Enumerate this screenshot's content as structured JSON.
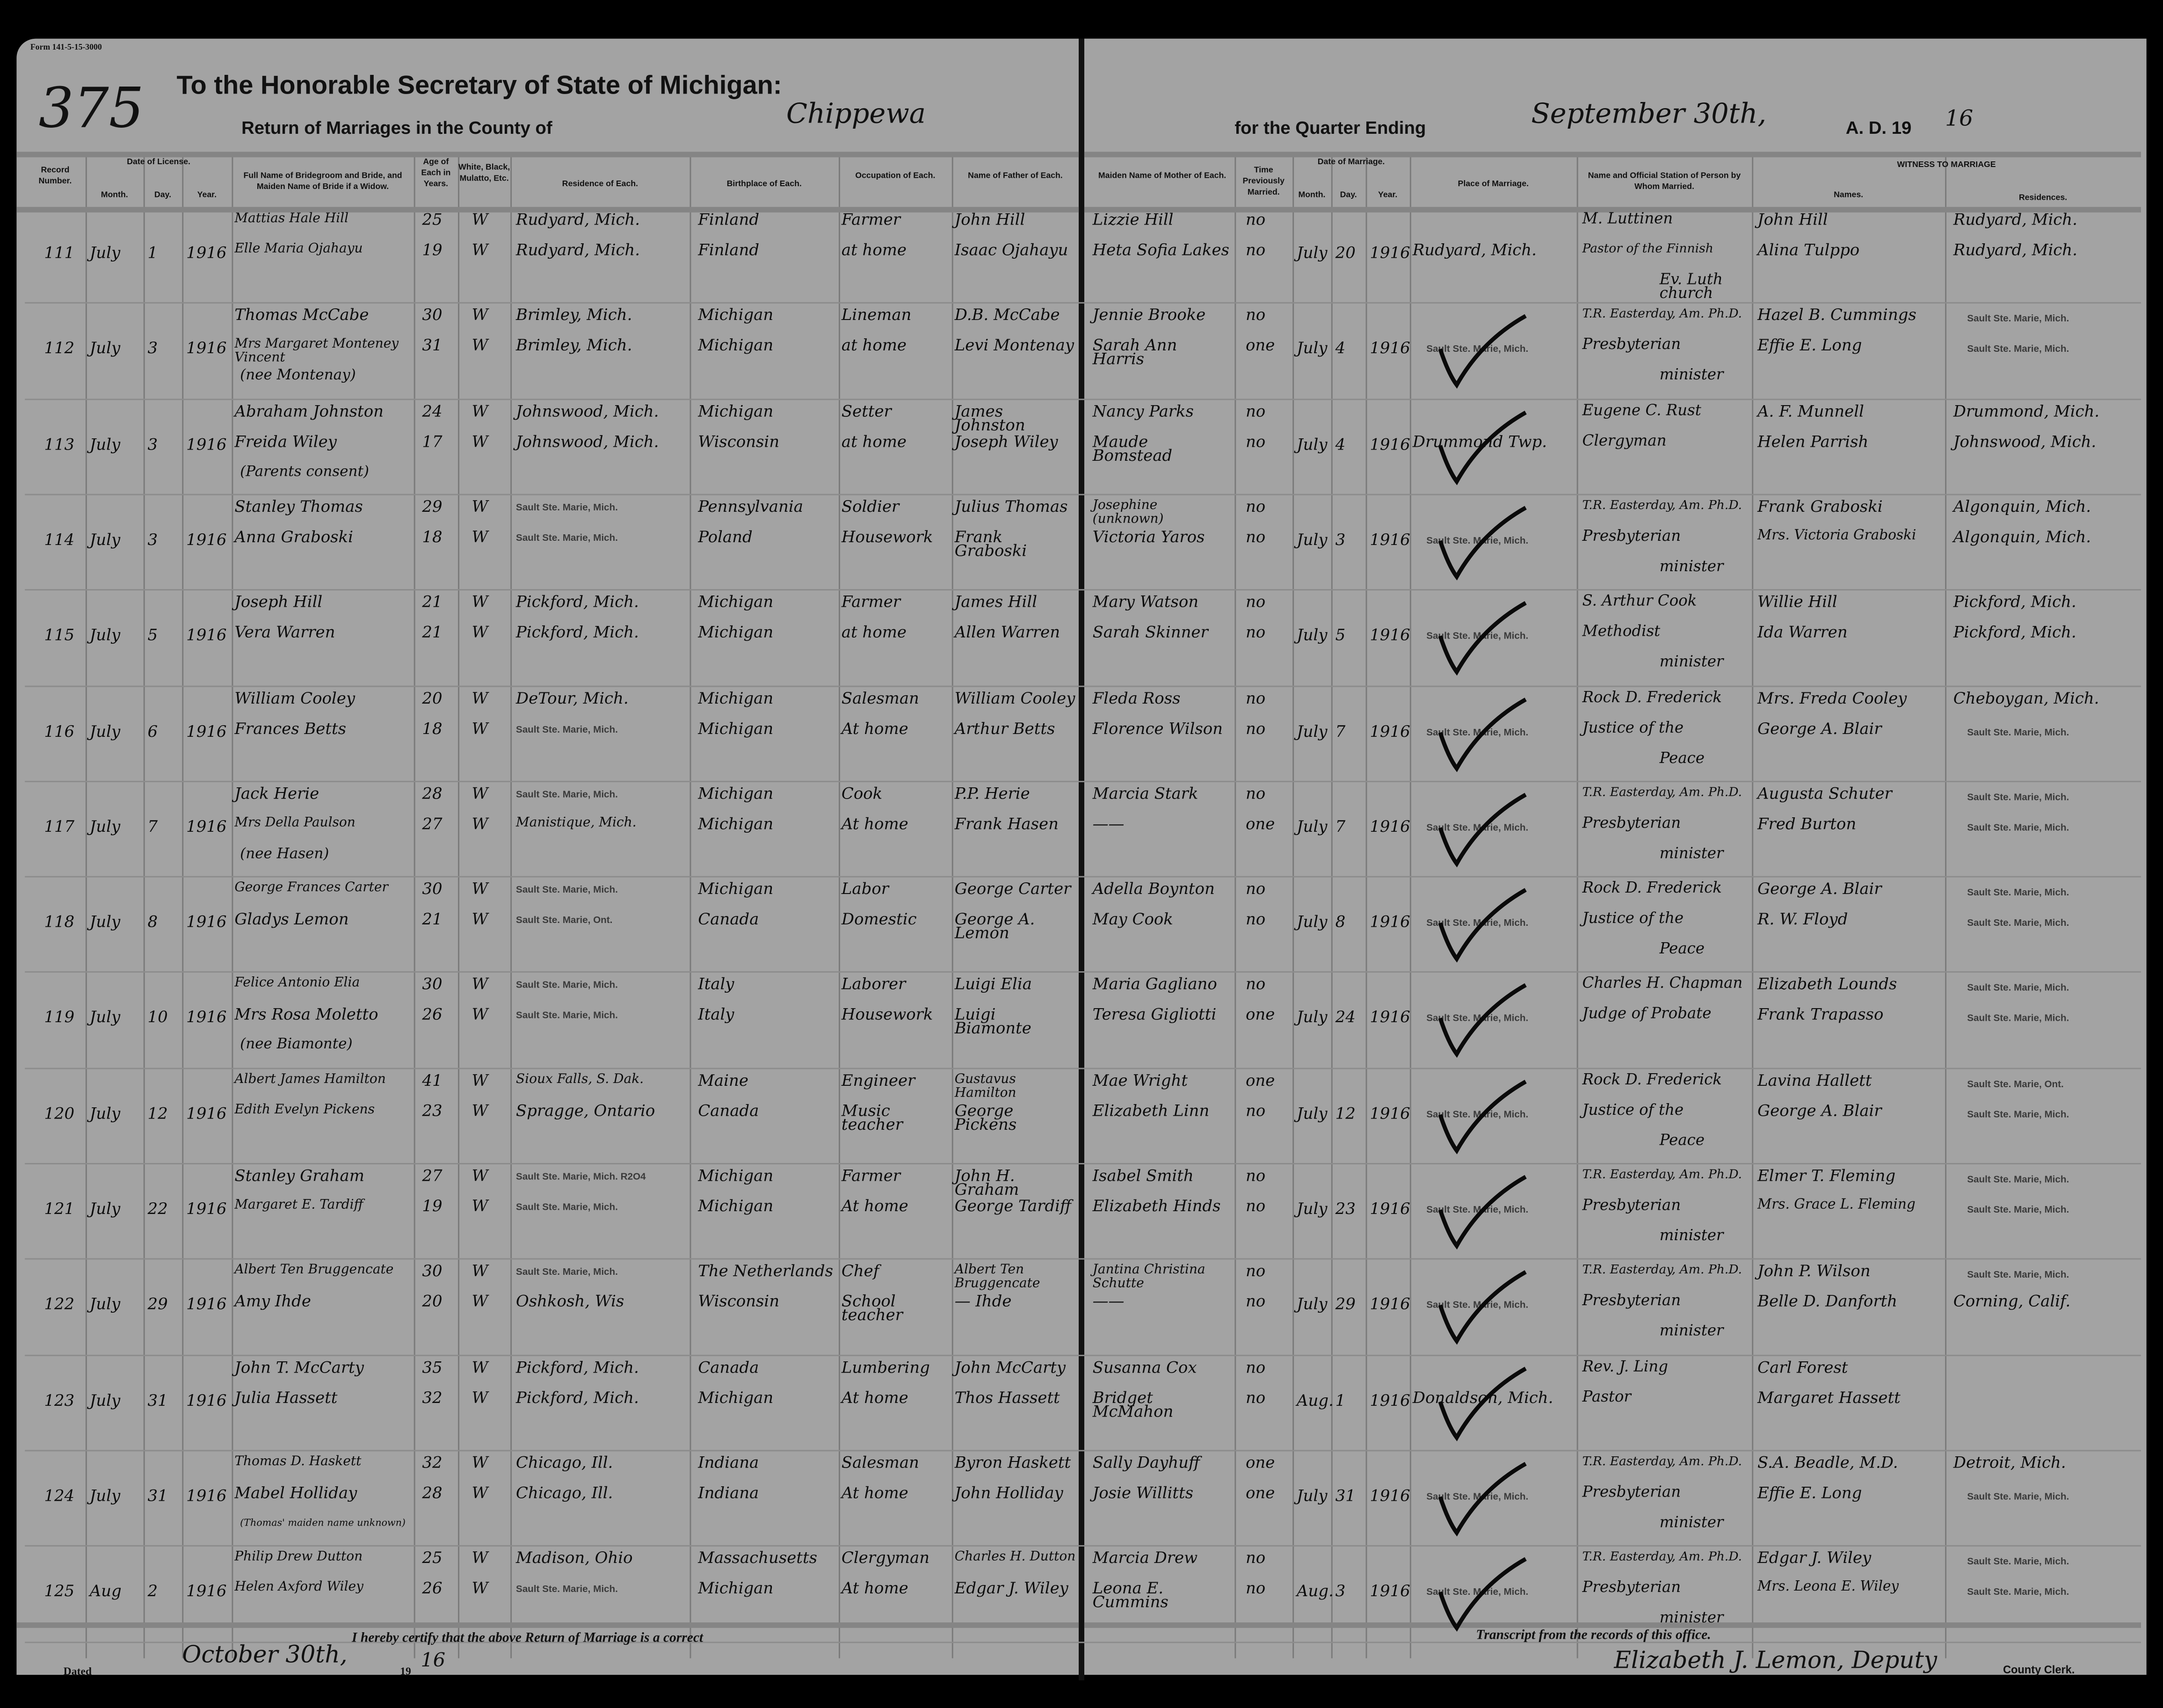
{
  "form_number": "Form 141-5-15-3000",
  "page_number": "375",
  "header": {
    "title": "To the Honorable Secretary of State of Michigan:",
    "subtitle_prefix": "Return of Marriages in the County of",
    "county": "Chippewa",
    "quarter_prefix": "for the Quarter Ending",
    "quarter_end": "September 30th,",
    "ad_prefix": "A. D. 19",
    "ad_year": "16"
  },
  "columns": {
    "record": "Record Number.",
    "license": "Date of License.",
    "month": "Month.",
    "day": "Day.",
    "year": "Year.",
    "name": "Full Name of Bridegroom and Bride, and Maiden Name of Bride if a Widow.",
    "age": "Age of Each in Years.",
    "race": "White, Black, Mulatto, Etc.",
    "residence": "Residence of Each.",
    "birthplace": "Birthplace of Each.",
    "occupation": "Occupation of Each.",
    "father": "Name of Father of Each.",
    "mother": "Maiden Name of Mother of Each.",
    "times": "Time Previously Married.",
    "marriage_date": "Date of Marriage.",
    "place": "Place of Marriage.",
    "officiant": "Name and Official Station of Person by Whom Married.",
    "witness": "WITNESS TO MARRIAGE",
    "witness_names": "Names.",
    "witness_res": "Residences."
  },
  "records": [
    {
      "no": "111",
      "lic": [
        "July",
        "1",
        "1916"
      ],
      "groom": {
        "name": "Mattias Hale Hill",
        "age": "25",
        "race": "W",
        "res": "Rudyard, Mich.",
        "birth": "Finland",
        "occ": "Farmer",
        "father": "John Hill",
        "mother": "Lizzie Hill",
        "times": "no"
      },
      "bride": {
        "name": "Elle Maria Ojahayu",
        "age": "19",
        "race": "W",
        "res": "Rudyard, Mich.",
        "birth": "Finland",
        "occ": "at home",
        "father": "Isaac Ojahayu",
        "mother": "Heta Sofia Lakes",
        "times": "no"
      },
      "note": "",
      "mar": [
        "July",
        "20",
        "1916"
      ],
      "place": "Rudyard, Mich.",
      "place_stamp": false,
      "check": false,
      "off": [
        "M. Luttinen",
        "Pastor of the Finnish",
        "Ev. Luth church"
      ],
      "wit": [
        {
          "name": "John Hill",
          "res": "Rudyard, Mich."
        },
        {
          "name": "Alina Tulppo",
          "res": "Rudyard, Mich."
        }
      ]
    },
    {
      "no": "112",
      "lic": [
        "July",
        "3",
        "1916"
      ],
      "groom": {
        "name": "Thomas McCabe",
        "age": "30",
        "race": "W",
        "res": "Brimley, Mich.",
        "birth": "Michigan",
        "occ": "Lineman",
        "father": "D.B. McCabe",
        "mother": "Jennie Brooke",
        "times": "no"
      },
      "bride": {
        "name": "Mrs Margaret Monteney Vincent",
        "age": "31",
        "race": "W",
        "res": "Brimley, Mich.",
        "birth": "Michigan",
        "occ": "at home",
        "father": "Levi Montenay",
        "mother": "Sarah Ann Harris",
        "times": "one"
      },
      "note": "(nee Montenay)",
      "mar": [
        "July",
        "4",
        "1916"
      ],
      "place": "Sault Ste. Marie, Mich.",
      "place_stamp": true,
      "check": true,
      "off": [
        "T.R. Easterday, Am. Ph.D.",
        "Presbyterian",
        "minister"
      ],
      "wit": [
        {
          "name": "Hazel B. Cummings",
          "res": "Sault Ste. Marie, Mich."
        },
        {
          "name": "Effie E. Long",
          "res": "Sault Ste. Marie, Mich."
        }
      ]
    },
    {
      "no": "113",
      "lic": [
        "July",
        "3",
        "1916"
      ],
      "groom": {
        "name": "Abraham Johnston",
        "age": "24",
        "race": "W",
        "res": "Johnswood, Mich.",
        "birth": "Michigan",
        "occ": "Setter",
        "father": "James Johnston",
        "mother": "Nancy Parks",
        "times": "no"
      },
      "bride": {
        "name": "Freida Wiley",
        "age": "17",
        "race": "W",
        "res": "Johnswood, Mich.",
        "birth": "Wisconsin",
        "occ": "at home",
        "father": "Joseph Wiley",
        "mother": "Maude Bomstead",
        "times": "no"
      },
      "note": "(Parents consent)",
      "mar": [
        "July",
        "4",
        "1916"
      ],
      "place": "Drummond Twp.",
      "place_stamp": false,
      "check": true,
      "off": [
        "Eugene C. Rust",
        "Clergyman",
        ""
      ],
      "wit": [
        {
          "name": "A. F. Munnell",
          "res": "Drummond, Mich."
        },
        {
          "name": "Helen Parrish",
          "res": "Johnswood, Mich."
        }
      ]
    },
    {
      "no": "114",
      "lic": [
        "July",
        "3",
        "1916"
      ],
      "groom": {
        "name": "Stanley Thomas",
        "age": "29",
        "race": "W",
        "res": "Sault Ste. Marie, Mich.",
        "birth": "Pennsylvania",
        "occ": "Soldier",
        "father": "Julius Thomas",
        "mother": "Josephine (unknown)",
        "times": "no"
      },
      "bride": {
        "name": "Anna Graboski",
        "age": "18",
        "race": "W",
        "res": "Sault Ste. Marie, Mich.",
        "birth": "Poland",
        "occ": "Housework",
        "father": "Frank Graboski",
        "mother": "Victoria Yaros",
        "times": "no"
      },
      "note": "",
      "mar": [
        "July",
        "3",
        "1916"
      ],
      "place": "Sault Ste. Marie, Mich.",
      "place_stamp": true,
      "check": true,
      "off": [
        "T.R. Easterday, Am. Ph.D.",
        "Presbyterian",
        "minister"
      ],
      "wit": [
        {
          "name": "Frank Graboski",
          "res": "Algonquin, Mich."
        },
        {
          "name": "Mrs. Victoria Graboski",
          "res": "Algonquin, Mich."
        }
      ]
    },
    {
      "no": "115",
      "lic": [
        "July",
        "5",
        "1916"
      ],
      "groom": {
        "name": "Joseph Hill",
        "age": "21",
        "race": "W",
        "res": "Pickford, Mich.",
        "birth": "Michigan",
        "occ": "Farmer",
        "father": "James Hill",
        "mother": "Mary Watson",
        "times": "no"
      },
      "bride": {
        "name": "Vera Warren",
        "age": "21",
        "race": "W",
        "res": "Pickford, Mich.",
        "birth": "Michigan",
        "occ": "at home",
        "father": "Allen Warren",
        "mother": "Sarah Skinner",
        "times": "no"
      },
      "note": "",
      "mar": [
        "July",
        "5",
        "1916"
      ],
      "place": "Sault Ste. Marie, Mich.",
      "place_stamp": true,
      "check": true,
      "off": [
        "S. Arthur Cook",
        "Methodist",
        "minister"
      ],
      "wit": [
        {
          "name": "Willie Hill",
          "res": "Pickford, Mich."
        },
        {
          "name": "Ida Warren",
          "res": "Pickford, Mich."
        }
      ]
    },
    {
      "no": "116",
      "lic": [
        "July",
        "6",
        "1916"
      ],
      "groom": {
        "name": "William Cooley",
        "age": "20",
        "race": "W",
        "res": "DeTour, Mich.",
        "birth": "Michigan",
        "occ": "Salesman",
        "father": "William Cooley",
        "mother": "Fleda Ross",
        "times": "no"
      },
      "bride": {
        "name": "Frances Betts",
        "age": "18",
        "race": "W",
        "res": "Sault Ste. Marie, Mich.",
        "birth": "Michigan",
        "occ": "At home",
        "father": "Arthur Betts",
        "mother": "Florence Wilson",
        "times": "no"
      },
      "note": "",
      "mar": [
        "July",
        "7",
        "1916"
      ],
      "place": "Sault Ste. Marie, Mich.",
      "place_stamp": true,
      "check": true,
      "off": [
        "Rock D. Frederick",
        "Justice of the",
        "Peace"
      ],
      "wit": [
        {
          "name": "Mrs. Freda Cooley",
          "res": "Cheboygan, Mich."
        },
        {
          "name": "George A. Blair",
          "res": "Sault Ste. Marie, Mich."
        }
      ]
    },
    {
      "no": "117",
      "lic": [
        "July",
        "7",
        "1916"
      ],
      "groom": {
        "name": "Jack Herie",
        "age": "28",
        "race": "W",
        "res": "Sault Ste. Marie, Mich.",
        "birth": "Michigan",
        "occ": "Cook",
        "father": "P.P. Herie",
        "mother": "Marcia Stark",
        "times": "no"
      },
      "bride": {
        "name": "Mrs Della Paulson",
        "age": "27",
        "race": "W",
        "res": "Manistique, Mich.",
        "birth": "Michigan",
        "occ": "At home",
        "father": "Frank Hasen",
        "mother": "——",
        "times": "one"
      },
      "note": "(nee Hasen)",
      "mar": [
        "July",
        "7",
        "1916"
      ],
      "place": "Sault Ste. Marie, Mich.",
      "place_stamp": true,
      "check": true,
      "off": [
        "T.R. Easterday, Am. Ph.D.",
        "Presbyterian",
        "minister"
      ],
      "wit": [
        {
          "name": "Augusta Schuter",
          "res": "Sault Ste. Marie, Mich."
        },
        {
          "name": "Fred Burton",
          "res": "Sault Ste. Marie, Mich."
        }
      ]
    },
    {
      "no": "118",
      "lic": [
        "July",
        "8",
        "1916"
      ],
      "groom": {
        "name": "George Frances Carter",
        "age": "30",
        "race": "W",
        "res": "Sault Ste. Marie, Mich.",
        "birth": "Michigan",
        "occ": "Labor",
        "father": "George Carter",
        "mother": "Adella Boynton",
        "times": "no"
      },
      "bride": {
        "name": "Gladys Lemon",
        "age": "21",
        "race": "W",
        "res": "Sault Ste. Marie, Ont.",
        "birth": "Canada",
        "occ": "Domestic",
        "father": "George A. Lemon",
        "mother": "May Cook",
        "times": "no"
      },
      "note": "",
      "mar": [
        "July",
        "8",
        "1916"
      ],
      "place": "Sault Ste. Marie, Mich.",
      "place_stamp": true,
      "check": true,
      "off": [
        "Rock D. Frederick",
        "Justice of the",
        "Peace"
      ],
      "wit": [
        {
          "name": "George A. Blair",
          "res": "Sault Ste. Marie, Mich."
        },
        {
          "name": "R. W. Floyd",
          "res": "Sault Ste. Marie, Mich."
        }
      ]
    },
    {
      "no": "119",
      "lic": [
        "July",
        "10",
        "1916"
      ],
      "groom": {
        "name": "Felice Antonio Elia",
        "age": "30",
        "race": "W",
        "res": "Sault Ste. Marie, Mich.",
        "birth": "Italy",
        "occ": "Laborer",
        "father": "Luigi Elia",
        "mother": "Maria Gagliano",
        "times": "no"
      },
      "bride": {
        "name": "Mrs Rosa Moletto",
        "age": "26",
        "race": "W",
        "res": "Sault Ste. Marie, Mich.",
        "birth": "Italy",
        "occ": "Housework",
        "father": "Luigi Biamonte",
        "mother": "Teresa Gigliotti",
        "times": "one"
      },
      "note": "(nee Biamonte)",
      "mar": [
        "July",
        "24",
        "1916"
      ],
      "place": "Sault Ste. Marie, Mich.",
      "place_stamp": true,
      "check": true,
      "off": [
        "Charles H. Chapman",
        "Judge of Probate",
        ""
      ],
      "wit": [
        {
          "name": "Elizabeth Lounds",
          "res": "Sault Ste. Marie, Mich."
        },
        {
          "name": "Frank Trapasso",
          "res": "Sault Ste. Marie, Mich."
        }
      ]
    },
    {
      "no": "120",
      "lic": [
        "July",
        "12",
        "1916"
      ],
      "groom": {
        "name": "Albert James Hamilton",
        "age": "41",
        "race": "W",
        "res": "Sioux Falls, S. Dak.",
        "birth": "Maine",
        "occ": "Engineer",
        "father": "Gustavus Hamilton",
        "mother": "Mae Wright",
        "times": "one"
      },
      "bride": {
        "name": "Edith Evelyn Pickens",
        "age": "23",
        "race": "W",
        "res": "Spragge, Ontario",
        "birth": "Canada",
        "occ": "Music teacher",
        "father": "George Pickens",
        "mother": "Elizabeth Linn",
        "times": "no"
      },
      "note": "",
      "mar": [
        "July",
        "12",
        "1916"
      ],
      "place": "Sault Ste. Marie, Mich.",
      "place_stamp": true,
      "check": true,
      "off": [
        "Rock D. Frederick",
        "Justice of the",
        "Peace"
      ],
      "wit": [
        {
          "name": "Lavina Hallett",
          "res": "Sault Ste. Marie, Ont."
        },
        {
          "name": "George A. Blair",
          "res": "Sault Ste. Marie, Mich."
        }
      ]
    },
    {
      "no": "121",
      "lic": [
        "July",
        "22",
        "1916"
      ],
      "groom": {
        "name": "Stanley Graham",
        "age": "27",
        "race": "W",
        "res": "Sault Ste. Marie, Mich. R2O4",
        "birth": "Michigan",
        "occ": "Farmer",
        "father": "John H. Graham",
        "mother": "Isabel Smith",
        "times": "no"
      },
      "bride": {
        "name": "Margaret E. Tardiff",
        "age": "19",
        "race": "W",
        "res": "Sault Ste. Marie, Mich.",
        "birth": "Michigan",
        "occ": "At home",
        "father": "George Tardiff",
        "mother": "Elizabeth Hinds",
        "times": "no"
      },
      "note": "",
      "mar": [
        "July",
        "23",
        "1916"
      ],
      "place": "Sault Ste. Marie, Mich.",
      "place_stamp": true,
      "check": true,
      "off": [
        "T.R. Easterday, Am. Ph.D.",
        "Presbyterian",
        "minister"
      ],
      "wit": [
        {
          "name": "Elmer T. Fleming",
          "res": "Sault Ste. Marie, Mich."
        },
        {
          "name": "Mrs. Grace L. Fleming",
          "res": "Sault Ste. Marie, Mich."
        }
      ]
    },
    {
      "no": "122",
      "lic": [
        "July",
        "29",
        "1916"
      ],
      "groom": {
        "name": "Albert Ten Bruggencate",
        "age": "30",
        "race": "W",
        "res": "Sault Ste. Marie, Mich.",
        "birth": "The Netherlands",
        "occ": "Chef",
        "father": "Albert Ten Bruggencate",
        "mother": "Jantina Christina Schutte",
        "times": "no"
      },
      "bride": {
        "name": "Amy Ihde",
        "age": "20",
        "race": "W",
        "res": "Oshkosh, Wis",
        "birth": "Wisconsin",
        "occ": "School teacher",
        "father": "— Ihde",
        "mother": "——",
        "times": "no"
      },
      "note": "",
      "mar": [
        "July",
        "29",
        "1916"
      ],
      "place": "Sault Ste. Marie, Mich.",
      "place_stamp": true,
      "check": true,
      "off": [
        "T.R. Easterday, Am. Ph.D.",
        "Presbyterian",
        "minister"
      ],
      "wit": [
        {
          "name": "John P. Wilson",
          "res": "Sault Ste. Marie, Mich."
        },
        {
          "name": "Belle D. Danforth",
          "res": "Corning, Calif."
        }
      ]
    },
    {
      "no": "123",
      "lic": [
        "July",
        "31",
        "1916"
      ],
      "groom": {
        "name": "John T. McCarty",
        "age": "35",
        "race": "W",
        "res": "Pickford, Mich.",
        "birth": "Canada",
        "occ": "Lumbering",
        "father": "John McCarty",
        "mother": "Susanna Cox",
        "times": "no"
      },
      "bride": {
        "name": "Julia Hassett",
        "age": "32",
        "race": "W",
        "res": "Pickford, Mich.",
        "birth": "Michigan",
        "occ": "At home",
        "father": "Thos Hassett",
        "mother": "Bridget McMahon",
        "times": "no"
      },
      "note": "",
      "mar": [
        "Aug.",
        "1",
        "1916"
      ],
      "place": "Donaldson, Mich.",
      "place_stamp": false,
      "check": true,
      "off": [
        "Rev. J. Ling",
        "Pastor",
        ""
      ],
      "wit": [
        {
          "name": "Carl Forest",
          "res": ""
        },
        {
          "name": "Margaret Hassett",
          "res": ""
        }
      ]
    },
    {
      "no": "124",
      "lic": [
        "July",
        "31",
        "1916"
      ],
      "groom": {
        "name": "Thomas D. Haskett",
        "age": "32",
        "race": "W",
        "res": "Chicago, Ill.",
        "birth": "Indiana",
        "occ": "Salesman",
        "father": "Byron Haskett",
        "mother": "Sally Dayhuff",
        "times": "one"
      },
      "bride": {
        "name": "Mabel Holliday",
        "age": "28",
        "race": "W",
        "res": "Chicago, Ill.",
        "birth": "Indiana",
        "occ": "At home",
        "father": "John Holliday",
        "mother": "Josie Willitts",
        "times": "one"
      },
      "note": "(Thomas' maiden name unknown)",
      "mar": [
        "July",
        "31",
        "1916"
      ],
      "place": "Sault Ste. Marie, Mich.",
      "place_stamp": true,
      "check": true,
      "off": [
        "T.R. Easterday, Am. Ph.D.",
        "Presbyterian",
        "minister"
      ],
      "wit": [
        {
          "name": "S.A. Beadle, M.D.",
          "res": "Detroit, Mich."
        },
        {
          "name": "Effie E. Long",
          "res": "Sault Ste. Marie, Mich."
        }
      ]
    },
    {
      "no": "125",
      "lic": [
        "Aug",
        "2",
        "1916"
      ],
      "groom": {
        "name": "Philip Drew Dutton",
        "age": "25",
        "race": "W",
        "res": "Madison, Ohio",
        "birth": "Massachusetts",
        "occ": "Clergyman",
        "father": "Charles H. Dutton",
        "mother": "Marcia Drew",
        "times": "no"
      },
      "bride": {
        "name": "Helen Axford Wiley",
        "age": "26",
        "race": "W",
        "res": "Sault Ste. Marie, Mich.",
        "birth": "Michigan",
        "occ": "At home",
        "father": "Edgar J. Wiley",
        "mother": "Leona E. Cummins",
        "times": "no"
      },
      "note": "",
      "mar": [
        "Aug.",
        "3",
        "1916"
      ],
      "place": "Sault Ste. Marie, Mich.",
      "place_stamp": true,
      "check": true,
      "off": [
        "T.R. Easterday, Am. Ph.D.",
        "Presbyterian",
        "minister"
      ],
      "wit": [
        {
          "name": "Edgar J. Wiley",
          "res": "Sault Ste. Marie, Mich."
        },
        {
          "name": "Mrs. Leona E. Wiley",
          "res": "Sault Ste. Marie, Mich."
        }
      ]
    }
  ],
  "footer": {
    "certify": "I hereby certify that the above Return of Marriage is a correct",
    "dated_label": "Dated",
    "dated_value": "October 30th,",
    "dated_year_prefix": "19",
    "dated_year": "16",
    "transcript": "Transcript from the records of this office.",
    "signature": "Elizabeth J. Lemon, Deputy",
    "clerk_label": "County Clerk."
  }
}
